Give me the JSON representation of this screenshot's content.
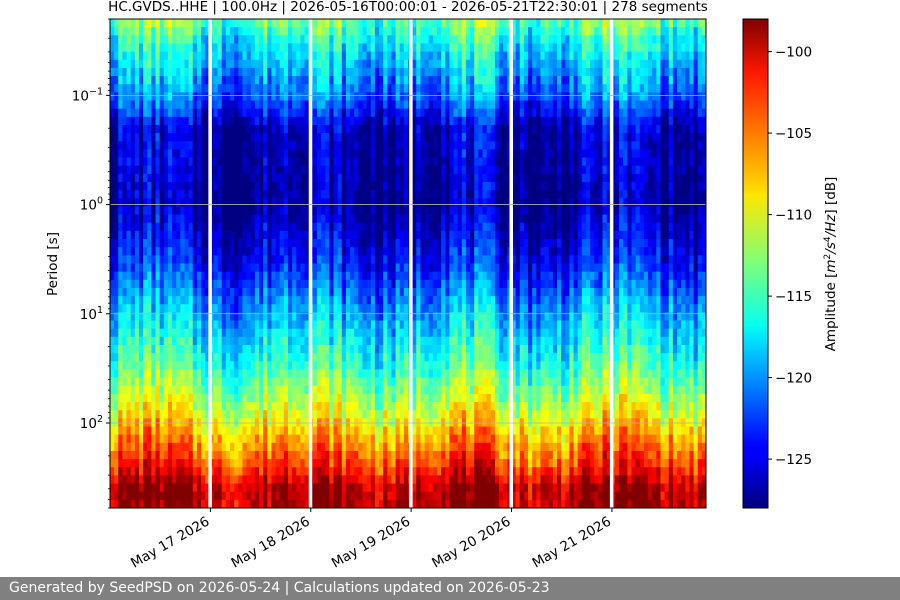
{
  "chart_data": {
    "type": "heatmap",
    "title": "HC.GVDS..HHE | 100.0Hz | 2026-05-16T00:00:01 - 2026-05-21T22:30:01 | 278 segments",
    "ylabel": "Period [s]",
    "colorbar_label": "Amplitude [m²/s⁴/Hz] [dB]",
    "colorbar_label_parts": {
      "pre": "Amplitude [",
      "m": "m",
      "two": "2",
      "mid": "/s",
      "four": "4",
      "tail": "/Hz",
      "post": "] [dB]"
    },
    "x_range": [
      "2026-05-16T00:00:01",
      "2026-05-21T22:30:01"
    ],
    "x_ticks": [
      {
        "date": "2026-05-17",
        "label": "May 17 2026"
      },
      {
        "date": "2026-05-18",
        "label": "May 18 2026"
      },
      {
        "date": "2026-05-19",
        "label": "May 19 2026"
      },
      {
        "date": "2026-05-20",
        "label": "May 20 2026"
      },
      {
        "date": "2026-05-21",
        "label": "May 21 2026"
      }
    ],
    "y_scale": "log",
    "y_inverted": true,
    "y_range": [
      0.02,
      600
    ],
    "y_ticks": [
      {
        "value": 0.1,
        "base": "10",
        "exp": "−1"
      },
      {
        "value": 1,
        "base": "10",
        "exp": "0"
      },
      {
        "value": 10,
        "base": "10",
        "exp": "1"
      },
      {
        "value": 100,
        "base": "10",
        "exp": "2"
      }
    ],
    "grid": true,
    "colormap": "jet",
    "clim": [
      -128,
      -98
    ],
    "colorbar_ticks": [
      {
        "value": -100,
        "label": "−100"
      },
      {
        "value": -105,
        "label": "−105"
      },
      {
        "value": -110,
        "label": "−110"
      },
      {
        "value": -115,
        "label": "−115"
      },
      {
        "value": -120,
        "label": "−120"
      },
      {
        "value": -125,
        "label": "−125"
      }
    ],
    "gaps": [
      "2026-05-17T00:00",
      "2026-05-18T00:00",
      "2026-05-19T00:00",
      "2026-05-20T00:00",
      "2026-05-21T00:00"
    ],
    "amplitude_profile_db": [
      {
        "period": 0.02,
        "db": -113
      },
      {
        "period": 0.03,
        "db": -116
      },
      {
        "period": 0.06,
        "db": -119
      },
      {
        "period": 0.1,
        "db": -121
      },
      {
        "period": 0.2,
        "db": -126
      },
      {
        "period": 1,
        "db": -127
      },
      {
        "period": 3,
        "db": -124
      },
      {
        "period": 10,
        "db": -119
      },
      {
        "period": 30,
        "db": -115
      },
      {
        "period": 80,
        "db": -110
      },
      {
        "period": 150,
        "db": -106
      },
      {
        "period": 250,
        "db": -103
      },
      {
        "period": 400,
        "db": -99
      }
    ]
  },
  "footer": {
    "text": "Generated by SeedPSD on 2026-05-24 | Calculations updated on 2026-05-23"
  }
}
